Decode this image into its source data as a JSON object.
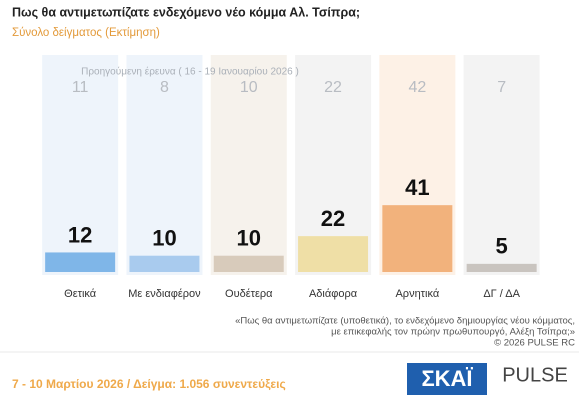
{
  "chart_data": {
    "type": "bar",
    "title": "Πως θα αντιμετωπίζατε ενδεχόμενο νέο κόμμα Αλ. Τσίπρα;",
    "subtitle": "Σύνολο δείγματος  (Εκτίμηση)",
    "categories": [
      "Θετικά",
      "Με ενδιαφέρον",
      "Ουδέτερα",
      "Αδιάφορα",
      "Αρνητικά",
      "ΔΓ / ΔΑ"
    ],
    "values": [
      12,
      10,
      10,
      22,
      41,
      5
    ],
    "colors": [
      "#7fb6e8",
      "#a9cbee",
      "#d8cbbb",
      "#efdfa6",
      "#f2b27c",
      "#c9c4bf"
    ],
    "background_colors": [
      "#eef4fb",
      "#eef4fb",
      "#f6f2ec",
      "#f3f3f3",
      "#fdf1e6",
      "#f3f3f3"
    ],
    "previous": {
      "label": "Προηγούμενη έρευνα ( 16 - 19 Ιανουαρίου 2026 )",
      "values": [
        11,
        8,
        10,
        22,
        42,
        7
      ]
    },
    "note": [
      "«Πως θα αντιμετωπίζατε (υποθετικά), το ενδεχόμενο δημιουργίας νέου κόμματος,",
      "με επικεφαλής τον πρώην πρωθυπουργό, Αλέξη Τσίπρα;»",
      "©  2026  PULSE RC"
    ],
    "footer": "7 - 10 Μαρτίου 2026  /  Δείγμα:  1.056 συνεντεύξεις",
    "logos": [
      "ΣΚΑΪ",
      "PULSE"
    ]
  }
}
